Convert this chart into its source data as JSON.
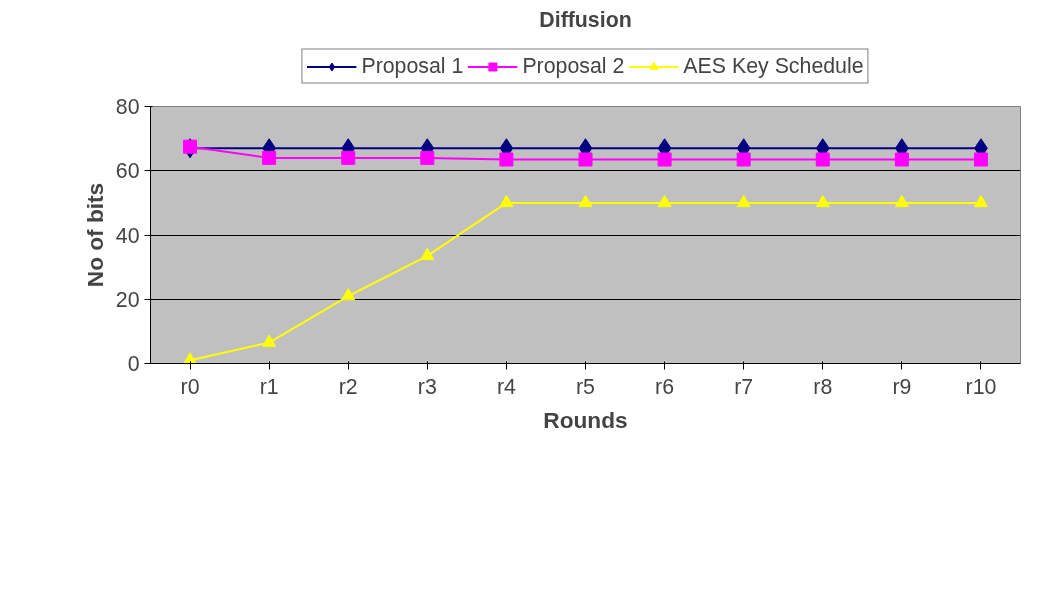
{
  "chart_data": {
    "type": "line",
    "title": "Diffusion",
    "xlabel": "Rounds",
    "ylabel": "No of bits",
    "categories": [
      "r0",
      "r1",
      "r2",
      "r3",
      "r4",
      "r5",
      "r6",
      "r7",
      "r8",
      "r9",
      "r10"
    ],
    "series": [
      {
        "name": "Proposal 1",
        "color": "#000080",
        "marker": "diamond",
        "values": [
          67,
          67,
          67,
          67,
          67,
          67,
          67,
          67,
          67,
          67,
          67
        ]
      },
      {
        "name": "Proposal 2",
        "color": "#ff00ff",
        "marker": "square",
        "values": [
          67.5,
          64,
          64,
          64,
          63.5,
          63.5,
          63.5,
          63.5,
          63.5,
          63.5,
          63.5
        ]
      },
      {
        "name": "AES Key Schedule",
        "color": "#ffff00",
        "marker": "triangle",
        "values": [
          1,
          6.5,
          21,
          33.5,
          50,
          50,
          50,
          50,
          50,
          50,
          50
        ]
      }
    ],
    "ylim": [
      0,
      80
    ],
    "yticks": [
      0,
      20,
      40,
      60,
      80
    ],
    "grid": "y",
    "legend": "top"
  }
}
